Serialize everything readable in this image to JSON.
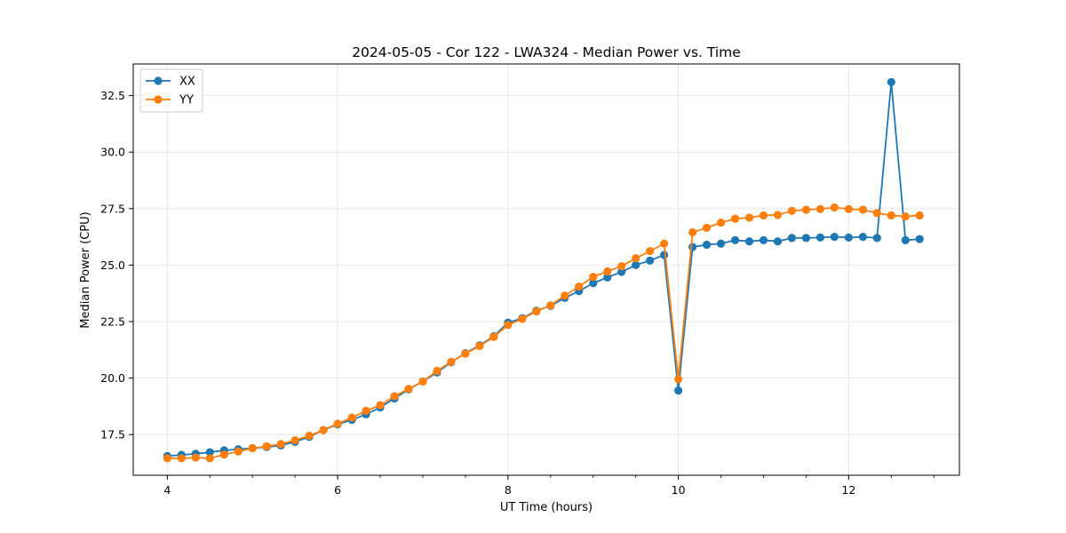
{
  "chart_data": {
    "type": "line",
    "title": "2024-05-05 - Cor 122 - LWA324 - Median Power vs. Time",
    "xlabel": "UT Time (hours)",
    "ylabel": "Median Power (CPU)",
    "xlim": [
      3.6,
      13.3
    ],
    "ylim": [
      15.7,
      33.9
    ],
    "xticks": [
      4,
      6,
      8,
      10,
      12
    ],
    "xtick_labels": [
      "4",
      "6",
      "8",
      "10",
      "12"
    ],
    "x_minor_step": 0.5,
    "yticks": [
      17.5,
      20.0,
      22.5,
      25.0,
      27.5,
      30.0,
      32.5
    ],
    "ytick_labels": [
      "17.5",
      "20.0",
      "22.5",
      "25.0",
      "27.5",
      "30.0",
      "32.5"
    ],
    "grid": true,
    "legend_position": "top-left",
    "x": [
      4.0,
      4.167,
      4.333,
      4.5,
      4.667,
      4.833,
      5.0,
      5.167,
      5.333,
      5.5,
      5.667,
      5.833,
      6.0,
      6.167,
      6.333,
      6.5,
      6.667,
      6.833,
      7.0,
      7.167,
      7.333,
      7.5,
      7.667,
      7.833,
      8.0,
      8.167,
      8.333,
      8.5,
      8.667,
      8.833,
      9.0,
      9.167,
      9.333,
      9.5,
      9.667,
      9.833,
      10.0,
      10.167,
      10.333,
      10.5,
      10.667,
      10.833,
      11.0,
      11.167,
      11.333,
      11.5,
      11.667,
      11.833,
      12.0,
      12.167,
      12.333,
      12.5,
      12.667,
      12.833
    ],
    "series": [
      {
        "name": "XX",
        "color": "#1f77b4",
        "values": [
          16.55,
          16.6,
          16.65,
          16.72,
          16.8,
          16.85,
          16.9,
          16.95,
          17.02,
          17.18,
          17.4,
          17.7,
          17.95,
          18.15,
          18.4,
          18.7,
          19.1,
          19.5,
          19.85,
          20.25,
          20.7,
          21.1,
          21.45,
          21.85,
          22.45,
          22.65,
          22.98,
          23.2,
          23.55,
          23.85,
          24.2,
          24.45,
          24.7,
          25.0,
          25.2,
          25.45,
          19.45,
          25.8,
          25.9,
          25.95,
          26.1,
          26.05,
          26.1,
          26.05,
          26.2,
          26.2,
          26.22,
          26.25,
          26.22,
          26.25,
          26.2,
          33.1,
          26.1,
          26.15
        ]
      },
      {
        "name": "YY",
        "color": "#ff7f0e",
        "values": [
          16.45,
          16.45,
          16.48,
          16.45,
          16.62,
          16.75,
          16.9,
          16.98,
          17.08,
          17.25,
          17.45,
          17.7,
          17.98,
          18.25,
          18.55,
          18.8,
          19.2,
          19.52,
          19.85,
          20.32,
          20.72,
          21.08,
          21.42,
          21.82,
          22.35,
          22.62,
          22.95,
          23.22,
          23.65,
          24.05,
          24.48,
          24.72,
          24.95,
          25.3,
          25.62,
          25.95,
          19.95,
          26.45,
          26.65,
          26.88,
          27.05,
          27.1,
          27.2,
          27.22,
          27.4,
          27.45,
          27.48,
          27.55,
          27.48,
          27.45,
          27.3,
          27.2,
          27.15,
          27.2
        ]
      }
    ]
  }
}
